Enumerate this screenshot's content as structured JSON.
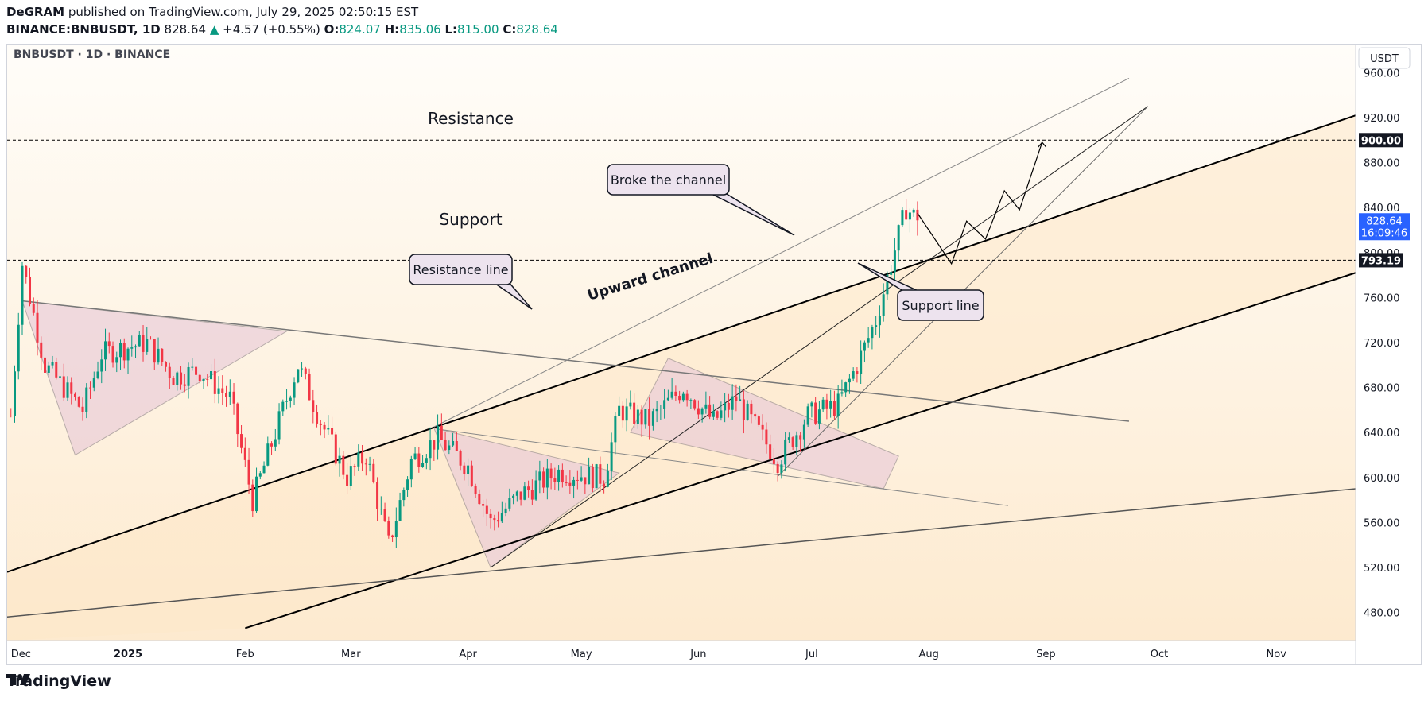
{
  "header": {
    "author": "DeGRAM",
    "published_text": "published on TradingView.com, July 29, 2025 02:50:15 EST",
    "symbol_full": "BINANCE:BNBUSDT, 1D",
    "last": "828.64",
    "change_arrow": "▲",
    "change": "+4.57 (+0.55%)",
    "open_label": "O:",
    "open": "824.07",
    "high_label": "H:",
    "high": "835.06",
    "low_label": "L:",
    "low": "815.00",
    "close_label": "C:",
    "close": "828.64"
  },
  "chart_title": "BNBUSDT · 1D · BINANCE",
  "currency": "USDT",
  "price_badge": {
    "price": "828.64",
    "countdown": "16:09:46",
    "color": "#2962ff"
  },
  "level_badges": [
    "900.00",
    "793.19"
  ],
  "annotations": {
    "resistance": "Resistance",
    "support": "Support",
    "resistance_line": "Resistance line",
    "upward_channel": "Upward channel",
    "broke_channel": "Broke the channel",
    "support_line": "Support line"
  },
  "colors": {
    "up": "#089981",
    "down": "#f23645",
    "channel_fill": "#fde8c8",
    "triangle_fill": "#e8c8d8",
    "accent": "#2962ff"
  },
  "footer_logo": "TradingView",
  "chart_data": {
    "type": "candlestick",
    "title": "BNBUSDT · 1D · BINANCE",
    "y_unit": "USDT",
    "ylim": [
      455,
      985
    ],
    "y_ticks": [
      480,
      520,
      560,
      600,
      640,
      680,
      720,
      760,
      800,
      840,
      880,
      920,
      960
    ],
    "x_ticks": [
      "Dec",
      "2025",
      "Feb",
      "Mar",
      "Apr",
      "May",
      "Jun",
      "Jul",
      "Aug",
      "Sep",
      "Oct",
      "Nov"
    ],
    "x_range": [
      "2024-11-30",
      "2025-11-22"
    ],
    "horizontal_levels": [
      900.0,
      793.19
    ],
    "last_price": 828.64,
    "ohlc_anchors": [
      {
        "date": "2024-12-01",
        "close": 655
      },
      {
        "date": "2024-12-04",
        "close": 790
      },
      {
        "date": "2024-12-10",
        "close": 700
      },
      {
        "date": "2024-12-20",
        "close": 660
      },
      {
        "date": "2024-12-25",
        "close": 710
      },
      {
        "date": "2025-01-06",
        "close": 720
      },
      {
        "date": "2025-01-13",
        "close": 690
      },
      {
        "date": "2025-01-20",
        "close": 695
      },
      {
        "date": "2025-01-28",
        "close": 670
      },
      {
        "date": "2025-02-03",
        "close": 580
      },
      {
        "date": "2025-02-11",
        "close": 660
      },
      {
        "date": "2025-02-15",
        "close": 700
      },
      {
        "date": "2025-02-21",
        "close": 650
      },
      {
        "date": "2025-02-28",
        "close": 600
      },
      {
        "date": "2025-03-05",
        "close": 620
      },
      {
        "date": "2025-03-11",
        "close": 540
      },
      {
        "date": "2025-03-17",
        "close": 615
      },
      {
        "date": "2025-03-24",
        "close": 635
      },
      {
        "date": "2025-04-01",
        "close": 610
      },
      {
        "date": "2025-04-07",
        "close": 560
      },
      {
        "date": "2025-04-15",
        "close": 585
      },
      {
        "date": "2025-04-25",
        "close": 605
      },
      {
        "date": "2025-05-07",
        "close": 600
      },
      {
        "date": "2025-05-11",
        "close": 660
      },
      {
        "date": "2025-05-19",
        "close": 650
      },
      {
        "date": "2025-05-28",
        "close": 680
      },
      {
        "date": "2025-06-05",
        "close": 650
      },
      {
        "date": "2025-06-11",
        "close": 670
      },
      {
        "date": "2025-06-22",
        "close": 615
      },
      {
        "date": "2025-06-30",
        "close": 655
      },
      {
        "date": "2025-07-08",
        "close": 665
      },
      {
        "date": "2025-07-13",
        "close": 700
      },
      {
        "date": "2025-07-18",
        "close": 740
      },
      {
        "date": "2025-07-22",
        "close": 790
      },
      {
        "date": "2025-07-26",
        "close": 840
      },
      {
        "date": "2025-07-29",
        "close": 828.64
      }
    ],
    "projection_path": [
      {
        "date": "2025-07-29",
        "price": 835
      },
      {
        "date": "2025-08-07",
        "price": 790
      },
      {
        "date": "2025-08-11",
        "price": 828
      },
      {
        "date": "2025-08-16",
        "price": 812
      },
      {
        "date": "2025-08-21",
        "price": 855
      },
      {
        "date": "2025-08-25",
        "price": 838
      },
      {
        "date": "2025-08-31",
        "price": 898
      }
    ],
    "trendlines": [
      {
        "from": {
          "date": "2024-11-30",
          "price": 516
        },
        "to": {
          "date": "2025-11-22",
          "price": 922
        }
      },
      {
        "from": {
          "date": "2025-02-01",
          "price": 466
        },
        "to": {
          "date": "2025-11-22",
          "price": 782
        }
      },
      {
        "from": {
          "date": "2024-11-30",
          "price": 476
        },
        "to": {
          "date": "2025-11-22",
          "price": 590
        }
      },
      {
        "from": {
          "date": "2024-12-04",
          "price": 757
        },
        "to": {
          "date": "2025-09-23",
          "price": 650
        }
      },
      {
        "from": {
          "date": "2025-03-23",
          "price": 645
        },
        "to": {
          "date": "2025-09-23",
          "price": 955
        }
      },
      {
        "from": {
          "date": "2025-03-24",
          "price": 643
        },
        "to": {
          "date": "2025-08-22",
          "price": 575
        }
      },
      {
        "from": {
          "date": "2025-04-07",
          "price": 520
        },
        "to": {
          "date": "2025-09-28",
          "price": 930
        }
      },
      {
        "from": {
          "date": "2025-06-22",
          "price": 601
        },
        "to": {
          "date": "2025-09-28",
          "price": 930
        }
      }
    ]
  }
}
